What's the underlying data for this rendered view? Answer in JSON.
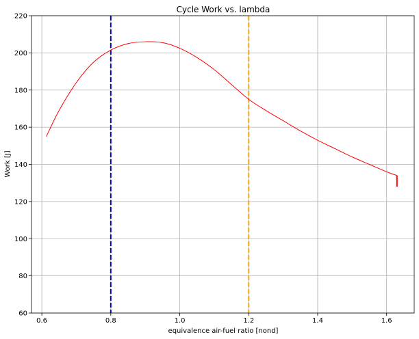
{
  "chart_data": {
    "type": "line",
    "title": "Cycle Work vs. lambda",
    "xlabel": "equivalence air-fuel ratio [nond]",
    "ylabel": "Work [J]",
    "xlim": [
      0.57,
      1.68
    ],
    "ylim": [
      60,
      220
    ],
    "xticks": [
      0.6,
      0.8,
      1.0,
      1.2,
      1.4,
      1.6
    ],
    "xtick_labels": [
      "0.6",
      "0.8",
      "1.0",
      "1.2",
      "1.4",
      "1.6"
    ],
    "yticks": [
      60,
      80,
      100,
      120,
      140,
      160,
      180,
      200,
      220
    ],
    "ytick_labels": [
      "60",
      "80",
      "100",
      "120",
      "140",
      "160",
      "180",
      "200",
      "220"
    ],
    "grid": true,
    "series": [
      {
        "color": "#ff0000",
        "x": [
          0.613,
          0.65,
          0.7,
          0.75,
          0.8,
          0.85,
          0.9,
          0.95,
          1.0,
          1.05,
          1.1,
          1.15,
          1.2,
          1.25,
          1.3,
          1.35,
          1.4,
          1.45,
          1.5,
          1.55,
          1.6,
          1.63
        ],
        "y": [
          155,
          169,
          184,
          195,
          201.5,
          205,
          206,
          205.5,
          202.5,
          197.5,
          191,
          183,
          175,
          169,
          163.5,
          158,
          153,
          148.5,
          144,
          140,
          136,
          134
        ]
      },
      {
        "color": "#ff0000",
        "x": [
          1.63,
          1.63
        ],
        "y": [
          134,
          128
        ]
      }
    ],
    "vlines": [
      {
        "x": 0.8,
        "color": "#0000cc",
        "style": "dashed"
      },
      {
        "x": 1.2,
        "color": "#ffa500",
        "style": "dashed"
      }
    ]
  }
}
